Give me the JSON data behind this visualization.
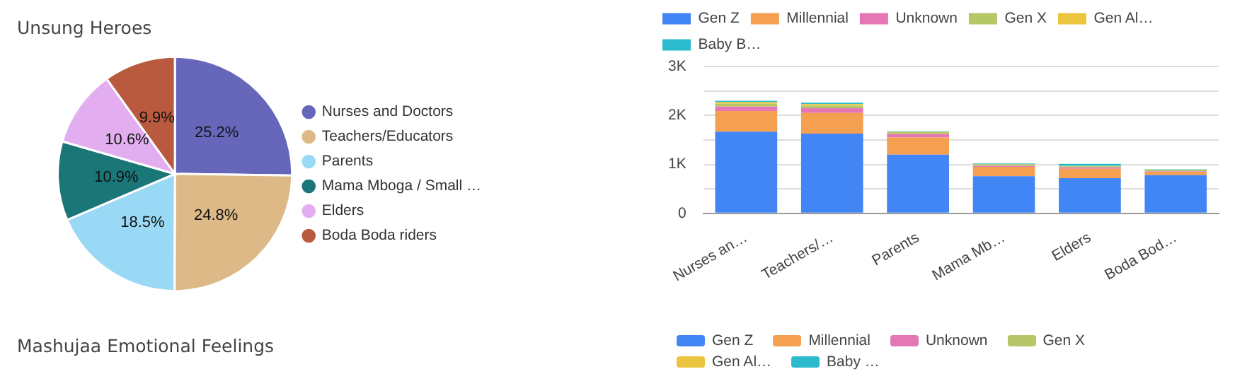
{
  "chart_data": [
    {
      "type": "pie",
      "title": "Unsung Heroes",
      "categories": [
        "Nurses and Doctors",
        "Teachers/Educators",
        "Parents",
        "Mama Mboga / Small …",
        "Elders",
        "Boda Boda riders"
      ],
      "values": [
        25.2,
        24.8,
        18.5,
        10.9,
        10.6,
        9.9
      ],
      "value_labels": [
        "25.2%",
        "24.8%",
        "18.5%",
        "10.9%",
        "10.6%",
        "9.9%"
      ],
      "colors": [
        "#6667bb",
        "#dcb986",
        "#9ad9f5",
        "#1b7678",
        "#e2aef0",
        "#b95a3e"
      ],
      "legend": "right"
    },
    {
      "type": "bar",
      "stacked": true,
      "categories": [
        "Nurses an…",
        "Teachers/…",
        "Parents",
        "Mama Mb…",
        "Elders",
        "Boda Bod…"
      ],
      "series": [
        {
          "name": "Gen Z",
          "color": "#4285f4",
          "values": [
            1670,
            1630,
            1200,
            760,
            720,
            780
          ]
        },
        {
          "name": "Millennial",
          "color": "#f59f50",
          "values": [
            420,
            420,
            350,
            190,
            190,
            70
          ]
        },
        {
          "name": "Unknown",
          "color": "#e477b4",
          "values": [
            90,
            100,
            70,
            20,
            30,
            10
          ]
        },
        {
          "name": "Gen X",
          "color": "#b5c766",
          "values": [
            60,
            50,
            40,
            20,
            20,
            30
          ]
        },
        {
          "name": "Gen Al…",
          "color": "#ebc53e",
          "values": [
            30,
            30,
            10,
            10,
            10,
            null
          ]
        },
        {
          "name": "Baby B…",
          "color": "#2cbbcc",
          "values": [
            30,
            30,
            10,
            20,
            40,
            10
          ]
        }
      ],
      "ylim": [
        0,
        3000
      ],
      "yticks": [
        0,
        {
          "value": 500,
          "label": null
        },
        {
          "value": 1000,
          "label": "1K"
        },
        {
          "value": 1500,
          "label": null
        },
        {
          "value": 2000,
          "label": "2K"
        },
        {
          "value": 2500,
          "label": null
        },
        {
          "value": 3000,
          "label": "3K"
        }
      ],
      "grid": "y",
      "legend": "top left"
    },
    {
      "type": "other",
      "title": "Mashujaa Emotional Feelings"
    },
    {
      "type": "other",
      "series": [
        {
          "name": "Gen Z",
          "color": "#4285f4"
        },
        {
          "name": "Millennial",
          "color": "#f59f50"
        },
        {
          "name": "Unknown",
          "color": "#e477b4"
        },
        {
          "name": "Gen X",
          "color": "#b5c766"
        },
        {
          "name": "Gen Al…",
          "color": "#ebc53e"
        },
        {
          "name": "Baby …",
          "color": "#2cbbcc"
        }
      ],
      "legend": "top left"
    }
  ]
}
